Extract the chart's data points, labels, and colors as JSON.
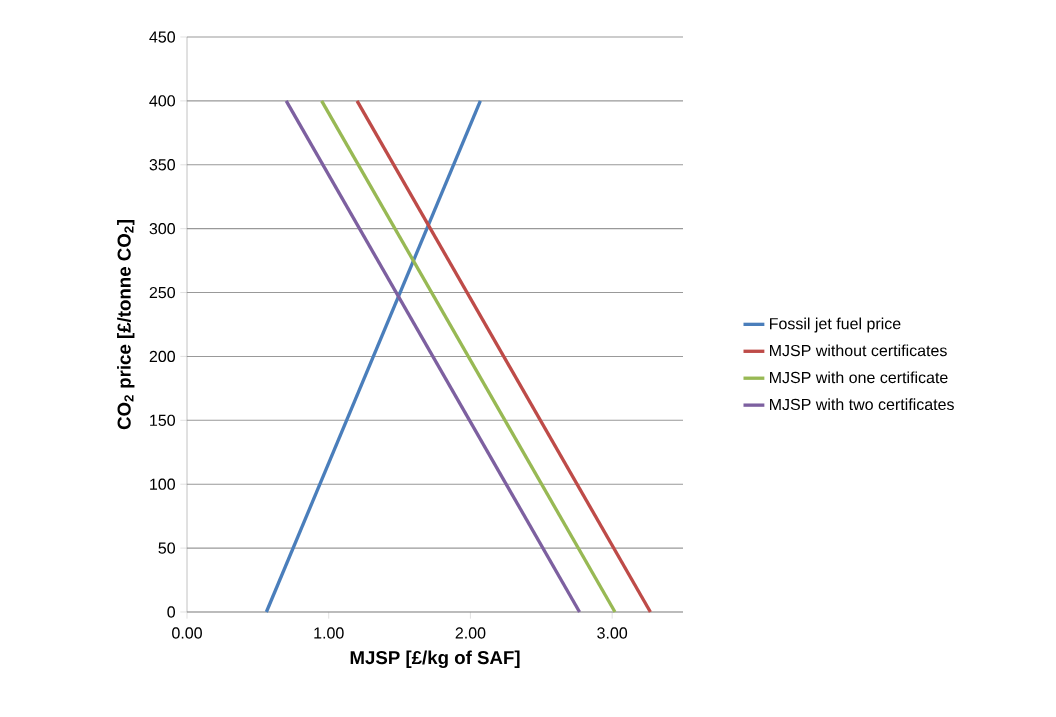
{
  "chart_data": {
    "type": "line",
    "xlabel": "MJSP [£/kg of SAF]",
    "ylabel": "CO$_{2}$ price [£/tonne CO$_{2}$]",
    "xlim": [
      0,
      3.5
    ],
    "xticks": [
      {
        "value": 0,
        "label": "0.00"
      },
      {
        "value": 1,
        "label": "1.00"
      },
      {
        "value": 2,
        "label": "2.00"
      },
      {
        "value": 3,
        "label": "3.00"
      }
    ],
    "ylim": [
      0,
      450
    ],
    "yticks": [
      0,
      50,
      100,
      150,
      200,
      250,
      300,
      350,
      400,
      450
    ],
    "grid": "y",
    "legend": "right",
    "line_style": "solid",
    "series": [
      {
        "name": "Fossil jet fuel price",
        "color": "#4a7ebb",
        "x": [
          0.56,
          2.07
        ],
        "values": [
          0,
          400
        ]
      },
      {
        "name": "MJSP without certificates",
        "color": "#be4b48",
        "x": [
          3.27,
          1.2
        ],
        "values": [
          0,
          400
        ]
      },
      {
        "name": "MJSP with one certificate",
        "color": "#98b954",
        "x": [
          3.02,
          0.95
        ],
        "values": [
          0,
          400
        ]
      },
      {
        "name": "MJSP with two certificates",
        "color": "#7d60a0",
        "x": [
          2.77,
          0.7
        ],
        "values": [
          0,
          400
        ]
      }
    ]
  }
}
